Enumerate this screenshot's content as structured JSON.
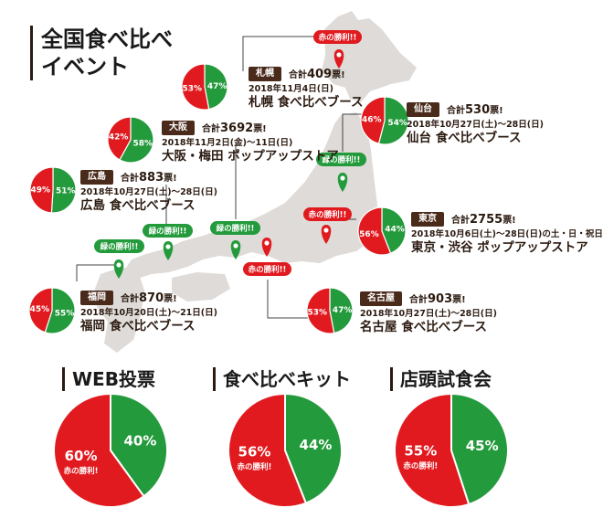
{
  "title_lines": [
    "全国食べ比べ",
    "イベント"
  ],
  "colors": {
    "red": "#e11a1f",
    "green": "#239a3b",
    "brown": "#4a2a1a",
    "map": "#dedbd8"
  },
  "callouts": {
    "red_win": "赤の勝利!!",
    "green_win": "緑の勝利!!"
  },
  "regions": [
    {
      "tag": "札幌",
      "total_prefix": "合計",
      "total": "409",
      "total_suffix": "票!",
      "date": "2018年11月4日(日)",
      "name": "札幌 食べ比べブース"
    },
    {
      "tag": "仙台",
      "total_prefix": "合計",
      "total": "530",
      "total_suffix": "票!",
      "date": "2018年10月27日(土)～28日(日)",
      "name": "仙台 食べ比べブース"
    },
    {
      "tag": "大阪",
      "total_prefix": "合計",
      "total": "3692",
      "total_suffix": "票!",
      "date": "2018年11月2日(金)～11日(日)",
      "name": "大阪・梅田 ポップアップストア"
    },
    {
      "tag": "広島",
      "total_prefix": "合計",
      "total": "883",
      "total_suffix": "票!",
      "date": "2018年10月27日(土)～28日(日)",
      "name": "広島 食べ比べブース"
    },
    {
      "tag": "東京",
      "total_prefix": "合計",
      "total": "2755",
      "total_suffix": "票!",
      "date": "2018年10月6日(土)～28日(日)の土・日・祝日",
      "name": "東京・渋谷 ポップアップストア"
    },
    {
      "tag": "福岡",
      "total_prefix": "合計",
      "total": "870",
      "total_suffix": "票!",
      "date": "2018年10月20日(土)～21日(日)",
      "name": "福岡 食べ比べブース"
    },
    {
      "tag": "名古屋",
      "total_prefix": "合計",
      "total": "903",
      "total_suffix": "票!",
      "date": "2018年10月27日(土)～28日(日)",
      "name": "名古屋 食べ比べブース"
    }
  ],
  "summary_titles": [
    "WEB投票",
    "食べ比べキット",
    "店頭試食会"
  ],
  "chart_data": [
    {
      "type": "pie",
      "title": "札幌",
      "labels": [
        "53%",
        "47%"
      ],
      "values": [
        53,
        47
      ],
      "colors": [
        "#e11a1f",
        "#239a3b"
      ]
    },
    {
      "type": "pie",
      "title": "仙台",
      "labels": [
        "46%",
        "54%"
      ],
      "values": [
        46,
        54
      ],
      "colors": [
        "#e11a1f",
        "#239a3b"
      ]
    },
    {
      "type": "pie",
      "title": "大阪",
      "labels": [
        "42%",
        "58%"
      ],
      "values": [
        42,
        58
      ],
      "colors": [
        "#e11a1f",
        "#239a3b"
      ]
    },
    {
      "type": "pie",
      "title": "広島",
      "labels": [
        "49%",
        "51%"
      ],
      "values": [
        49,
        51
      ],
      "colors": [
        "#e11a1f",
        "#239a3b"
      ]
    },
    {
      "type": "pie",
      "title": "東京",
      "labels": [
        "56%",
        "44%"
      ],
      "values": [
        56,
        44
      ],
      "colors": [
        "#e11a1f",
        "#239a3b"
      ]
    },
    {
      "type": "pie",
      "title": "福岡",
      "labels": [
        "45%",
        "55%"
      ],
      "values": [
        45,
        55
      ],
      "colors": [
        "#e11a1f",
        "#239a3b"
      ]
    },
    {
      "type": "pie",
      "title": "名古屋",
      "labels": [
        "53%",
        "47%"
      ],
      "values": [
        53,
        47
      ],
      "colors": [
        "#e11a1f",
        "#239a3b"
      ]
    },
    {
      "type": "pie",
      "title": "WEB投票",
      "labels": [
        "60%",
        "40%"
      ],
      "values": [
        60,
        40
      ],
      "colors": [
        "#e11a1f",
        "#239a3b"
      ],
      "note": "赤の勝利!"
    },
    {
      "type": "pie",
      "title": "食べ比べキット",
      "labels": [
        "56%",
        "44%"
      ],
      "values": [
        56,
        44
      ],
      "colors": [
        "#e11a1f",
        "#239a3b"
      ],
      "note": "赤の勝利!"
    },
    {
      "type": "pie",
      "title": "店頭試食会",
      "labels": [
        "55%",
        "45%"
      ],
      "values": [
        55,
        45
      ],
      "colors": [
        "#e11a1f",
        "#239a3b"
      ],
      "note": "赤の勝利!"
    }
  ]
}
